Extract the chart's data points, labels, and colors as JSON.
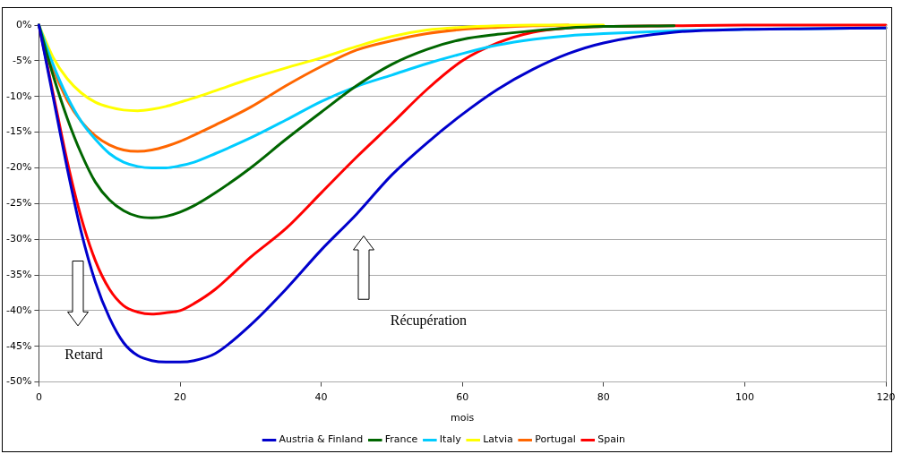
{
  "chart_data": {
    "type": "line",
    "xlabel": "mois",
    "x": [
      0,
      2,
      4,
      6,
      8,
      10,
      12,
      14,
      16,
      18,
      20,
      22,
      25,
      30,
      35,
      40,
      45,
      50,
      55,
      60,
      65,
      70,
      75,
      80,
      90,
      100,
      110,
      120
    ],
    "series": [
      {
        "name": "Austria & Finland",
        "color": "#0000cc",
        "values": [
          0,
          -10,
          -20,
          -29,
          -36,
          -41,
          -44.5,
          -46.3,
          -47,
          -47.2,
          -47.2,
          -47,
          -46,
          -42,
          -37,
          -31.5,
          -26.5,
          -21,
          -16.5,
          -12.5,
          -9,
          -6.2,
          -4,
          -2.5,
          -1,
          -0.6,
          -0.5,
          -0.4
        ]
      },
      {
        "name": "France",
        "color": "#006600",
        "values": [
          0,
          -7,
          -13,
          -18,
          -22,
          -24.5,
          -26,
          -26.8,
          -27,
          -26.8,
          -26.2,
          -25.3,
          -23.5,
          -20,
          -16,
          -12.2,
          -8.5,
          -5.5,
          -3.4,
          -2,
          -1.3,
          -0.8,
          -0.4,
          -0.2,
          -0.1,
          null,
          null,
          null
        ]
      },
      {
        "name": "Italy",
        "color": "#00ccff",
        "values": [
          0,
          -5.5,
          -10,
          -13.5,
          -16,
          -18,
          -19.2,
          -19.8,
          -20,
          -20,
          -19.7,
          -19.2,
          -18,
          -15.8,
          -13.3,
          -10.7,
          -8.6,
          -7,
          -5.4,
          -4,
          -2.8,
          -2,
          -1.5,
          -1.2,
          -0.8,
          -0.6,
          -0.5,
          -0.4
        ]
      },
      {
        "name": "Latvia",
        "color": "#ffff00",
        "values": [
          0,
          -4.5,
          -7.5,
          -9.5,
          -10.8,
          -11.5,
          -11.9,
          -12,
          -11.8,
          -11.4,
          -10.8,
          -10.2,
          -9.2,
          -7.5,
          -6,
          -4.6,
          -3,
          -1.6,
          -0.7,
          -0.3,
          -0.1,
          0,
          0,
          0,
          null,
          null,
          null,
          null
        ]
      },
      {
        "name": "Portugal",
        "color": "#ff6600",
        "values": [
          0,
          -6,
          -10.5,
          -13.5,
          -15.5,
          -16.8,
          -17.5,
          -17.7,
          -17.5,
          -17,
          -16.3,
          -15.4,
          -14,
          -11.5,
          -8.5,
          -5.8,
          -3.5,
          -2.2,
          -1.2,
          -0.6,
          -0.3,
          -0.1,
          0,
          null,
          null,
          null,
          null,
          null
        ]
      },
      {
        "name": "Spain",
        "color": "#ff0000",
        "values": [
          0,
          -9.5,
          -19,
          -27,
          -33,
          -37,
          -39.3,
          -40.2,
          -40.5,
          -40.3,
          -40,
          -39,
          -37,
          -32.5,
          -28.5,
          -23.5,
          -18.5,
          -13.8,
          -9,
          -5,
          -2.5,
          -1,
          -0.4,
          -0.2,
          -0.1,
          0,
          0,
          0
        ]
      }
    ],
    "xlim": [
      0,
      120
    ],
    "xticks": [
      0,
      20,
      40,
      60,
      80,
      100,
      120
    ],
    "ylim": [
      -50,
      0
    ],
    "yticks": [
      {
        "value": 0,
        "label": "0%"
      },
      {
        "value": -5,
        "label": "-5%"
      },
      {
        "value": -10,
        "label": "-10%"
      },
      {
        "value": -15,
        "label": "-15%"
      },
      {
        "value": -20,
        "label": "-20%"
      },
      {
        "value": -25,
        "label": "-25%"
      },
      {
        "value": -30,
        "label": "-30%"
      },
      {
        "value": -35,
        "label": "-35%"
      },
      {
        "value": -40,
        "label": "-40%"
      },
      {
        "value": -45,
        "label": "-45%"
      },
      {
        "value": -50,
        "label": "-50%"
      }
    ],
    "grid": "y",
    "legend": "bottom",
    "marker": "none",
    "line_style": "solid",
    "annotations": [
      "Retard",
      "Récupération"
    ]
  }
}
